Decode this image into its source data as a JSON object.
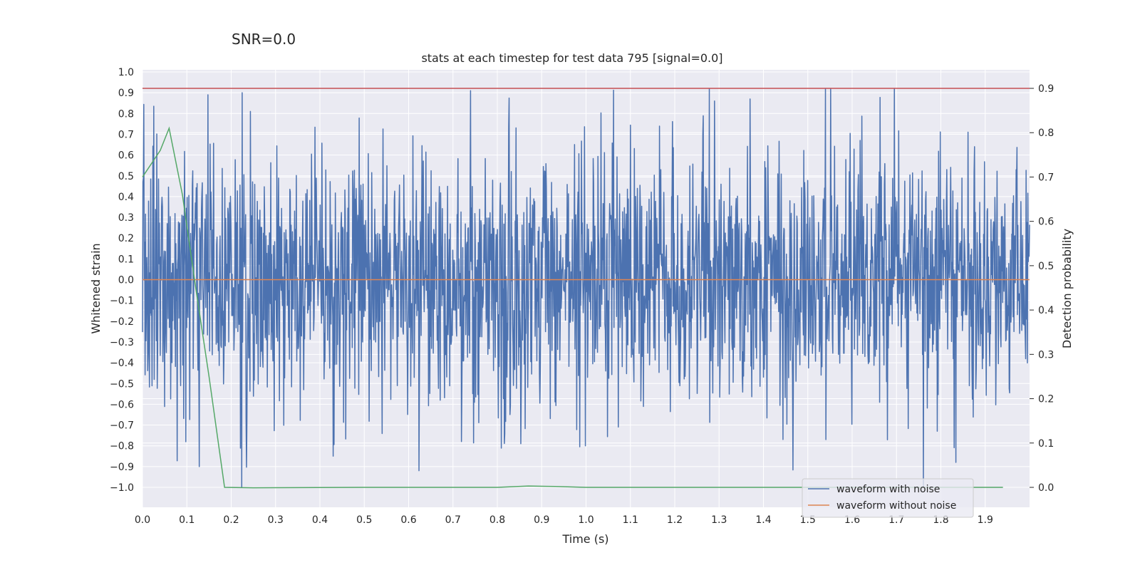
{
  "chart_data": {
    "type": "line",
    "suptitle": "SNR=0.0",
    "title": "stats at each timestep for test data 795 [signal=0.0]",
    "xlabel": "Time (s)",
    "ylabel": "Whitened strain",
    "ylabel_right": "Detection probability",
    "xlim": [
      0.0,
      2.0
    ],
    "ylim": [
      -1.09,
      1.0
    ],
    "ylim_right": [
      -0.04,
      0.93
    ],
    "x_ticks": [
      "0.0",
      "0.1",
      "0.2",
      "0.3",
      "0.4",
      "0.5",
      "0.6",
      "0.7",
      "0.8",
      "0.9",
      "1.0",
      "1.1",
      "1.2",
      "1.3",
      "1.4",
      "1.5",
      "1.6",
      "1.7",
      "1.8",
      "1.9"
    ],
    "y_ticks": [
      "1.0",
      "0.9",
      "0.8",
      "0.7",
      "0.6",
      "0.5",
      "0.4",
      "0.3",
      "0.2",
      "0.1",
      "0.0",
      "−0.1",
      "−0.2",
      "−0.3",
      "−0.4",
      "−0.5",
      "−0.6",
      "−0.7",
      "−0.8",
      "−0.9",
      "−1.0"
    ],
    "y_ticks_right": [
      "0.9",
      "0.8",
      "0.7",
      "0.6",
      "0.5",
      "0.4",
      "0.3",
      "0.2",
      "0.1",
      "0.0"
    ],
    "series": [
      {
        "name": "waveform with noise",
        "color": "#4c72b0",
        "kind": "noise",
        "n_samples": 2048,
        "amplitude_range": [
          -1.0,
          0.92
        ],
        "peaks": [
          {
            "x": 0.148,
            "y": 0.89
          },
          {
            "x": 0.225,
            "y": 0.9
          },
          {
            "x": 0.243,
            "y": 0.81
          },
          {
            "x": 0.74,
            "y": 0.91
          },
          {
            "x": 1.695,
            "y": 0.92
          },
          {
            "x": 1.37,
            "y": 0.87
          },
          {
            "x": 1.29,
            "y": 0.86
          },
          {
            "x": 0.224,
            "y": -1.0
          },
          {
            "x": 0.128,
            "y": -0.9
          },
          {
            "x": 0.623,
            "y": -0.92
          },
          {
            "x": 1.834,
            "y": -0.88
          },
          {
            "x": 0.43,
            "y": -0.85
          },
          {
            "x": 0.999,
            "y": -0.8
          },
          {
            "x": 0.853,
            "y": -0.79
          },
          {
            "x": 1.541,
            "y": -0.77
          }
        ]
      },
      {
        "name": "waveform without noise",
        "color": "#dd8452",
        "x": [
          0.0,
          2.0
        ],
        "y": [
          0.0,
          0.0
        ]
      },
      {
        "name": "detection probability",
        "axis": "right",
        "color": "#55a868",
        "x": [
          0.0,
          0.04,
          0.06,
          0.09,
          0.12,
          0.15,
          0.185,
          0.25,
          0.5,
          0.8,
          0.87,
          0.93,
          1.0,
          1.5,
          1.94
        ],
        "y": [
          0.7,
          0.76,
          0.81,
          0.66,
          0.45,
          0.25,
          0.0,
          -0.001,
          0.0,
          0.0,
          0.003,
          0.002,
          0.0,
          0.0,
          0.0
        ]
      },
      {
        "name": "threshold",
        "axis": "right",
        "color": "#c44e52",
        "x": [
          0.0,
          2.0
        ],
        "y": [
          0.9,
          0.9
        ]
      }
    ],
    "legend": {
      "position": "lower-right",
      "entries": [
        {
          "label": "waveform with noise",
          "color": "#4c72b0"
        },
        {
          "label": "waveform without noise",
          "color": "#dd8452"
        }
      ]
    }
  }
}
